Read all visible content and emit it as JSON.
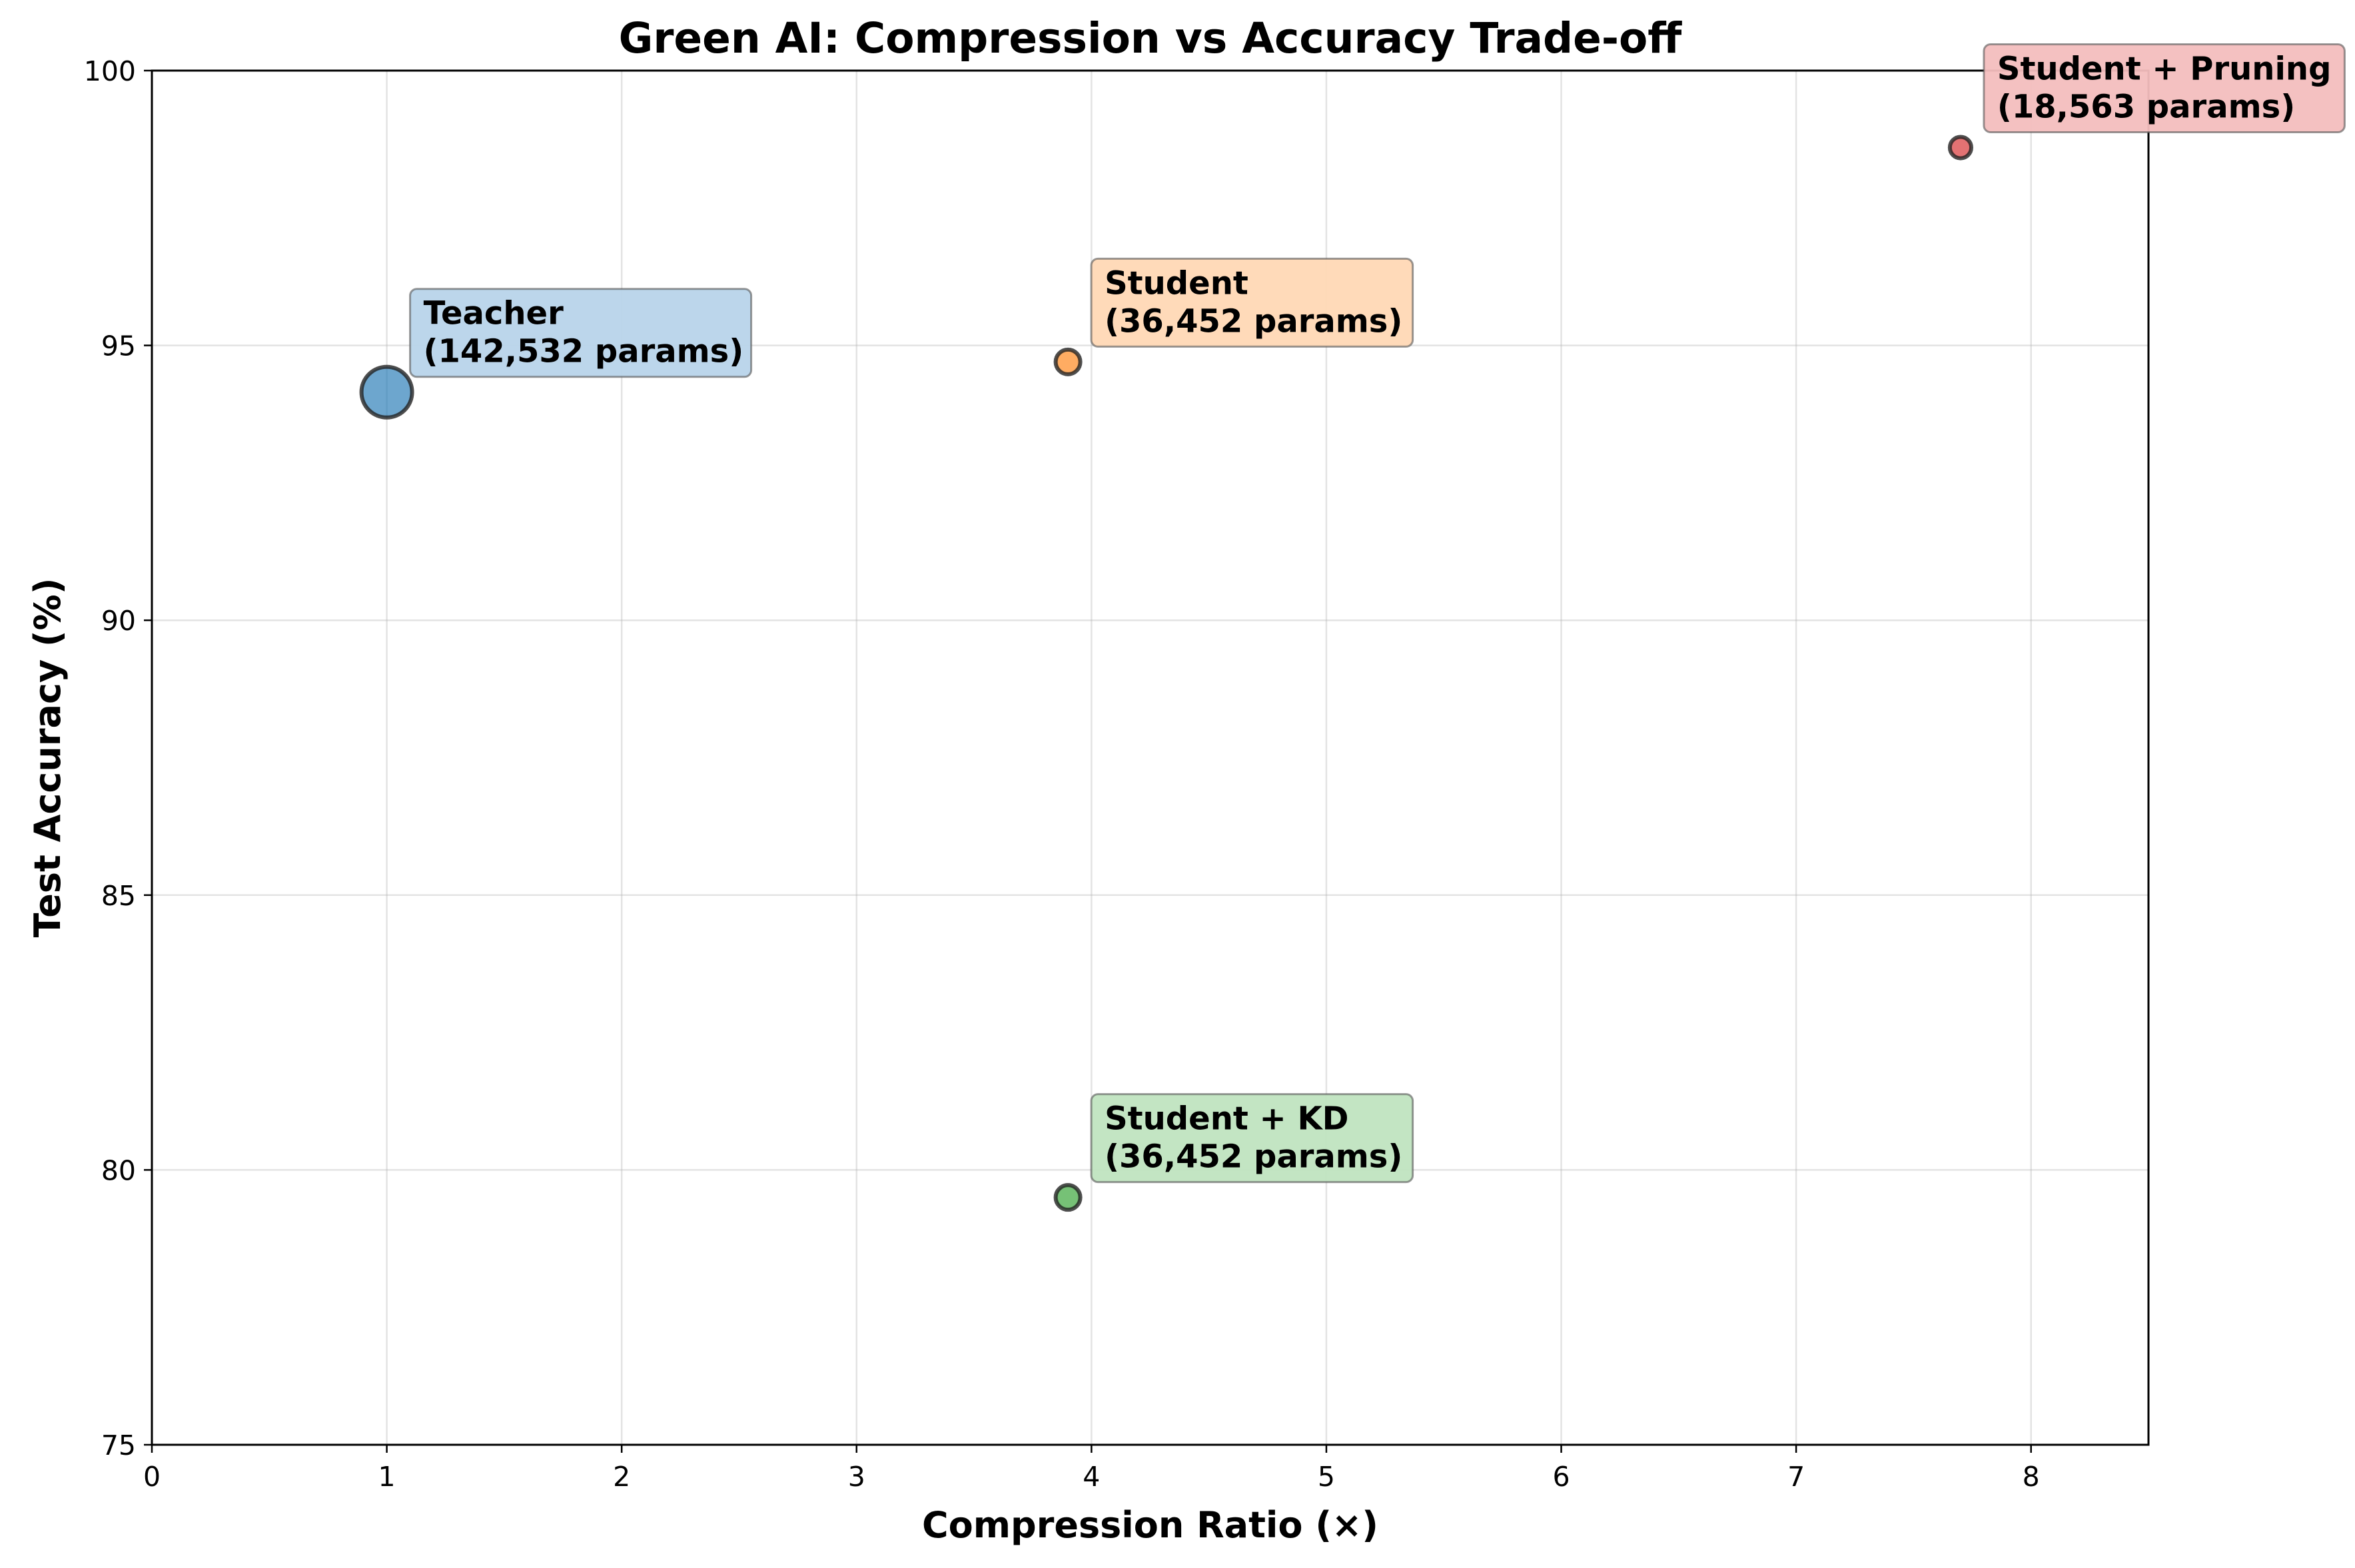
{
  "chart_data": {
    "type": "scatter",
    "title": "Green AI: Compression vs Accuracy Trade-off",
    "xlabel": "Compression Ratio (×)",
    "ylabel": "Test Accuracy (%)",
    "xlim": [
      0,
      8.5
    ],
    "ylim": [
      75,
      100
    ],
    "xticks": [
      0,
      1,
      2,
      3,
      4,
      5,
      6,
      7,
      8
    ],
    "yticks": [
      75,
      80,
      85,
      90,
      95,
      100
    ],
    "grid": true,
    "points": [
      {
        "name": "Teacher",
        "params_label": "(142,532 params)",
        "params": 142532,
        "x": 1.0,
        "y": 94.15,
        "color": "#1f77b4",
        "box_color": "#b8d4ea"
      },
      {
        "name": "Student",
        "params_label": "(36,452 params)",
        "params": 36452,
        "x": 3.9,
        "y": 94.7,
        "color": "#ff7f0e",
        "box_color": "#ffd8b5"
      },
      {
        "name": "Student + KD",
        "params_label": "(36,452 params)",
        "params": 36452,
        "x": 3.9,
        "y": 79.5,
        "color": "#2ca02c",
        "box_color": "#c0e4c0"
      },
      {
        "name": "Student + Pruning",
        "params_label": "(18,563 params)",
        "params": 18563,
        "x": 7.7,
        "y": 98.6,
        "color": "#d62728",
        "box_color": "#f3bebe"
      }
    ]
  }
}
